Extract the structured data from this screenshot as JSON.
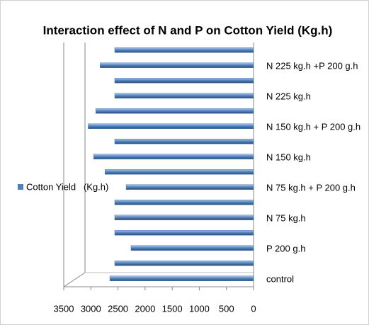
{
  "chart_data": {
    "type": "bar",
    "orientation": "horizontal",
    "title": "Interaction effect of N and P on Cotton Yield   (Kg.h)",
    "categories": [
      "control",
      null,
      "P 200 g.h",
      null,
      "N 75 kg.h",
      null,
      "N 75 kg.h + P 200 g.h",
      null,
      "N 150 kg.h",
      null,
      "N 150 kg.h + P 200 g.h",
      null,
      "N 225 kg.h",
      null,
      "N 225 kg.h +P 200 g.h",
      null
    ],
    "series": [
      {
        "name": "Cotton Yield   (Kg.h)",
        "color": "#4f81bd",
        "values": [
          2650,
          2560,
          2260,
          2560,
          2560,
          2560,
          2350,
          2740,
          2950,
          2560,
          3050,
          2910,
          2560,
          2560,
          2830,
          2560
        ]
      }
    ],
    "xlim": [
      0,
      3500
    ],
    "xticks": [
      0,
      500,
      1000,
      1500,
      2000,
      2500,
      3000,
      3500
    ],
    "x_reversed": true,
    "legend": "left"
  }
}
